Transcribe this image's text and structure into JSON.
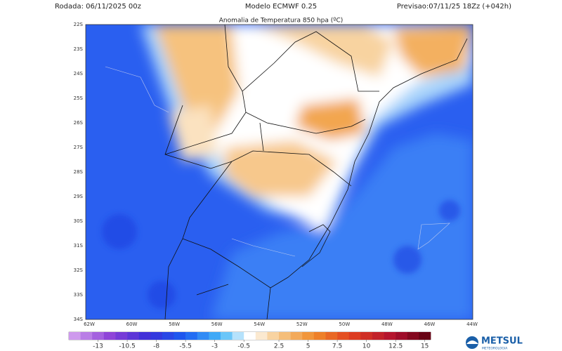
{
  "header": {
    "run": "Rodada: 06/11/2025 00z",
    "model": "Modelo ECMWF 0.25",
    "forecast": "Previsao:07/11/25 18Zz (+042h)"
  },
  "map": {
    "title": "Anomalia de Temperatura 850 hpa (ºC)",
    "lat_labels": [
      "22S",
      "23S",
      "24S",
      "25S",
      "26S",
      "27S",
      "28S",
      "29S",
      "30S",
      "31S",
      "32S",
      "33S",
      "34S"
    ],
    "lon_labels": [
      "62W",
      "60W",
      "58W",
      "56W",
      "54W",
      "52W",
      "50W",
      "48W",
      "46W",
      "44W"
    ]
  },
  "colorbar": {
    "lim": [
      -15.5,
      15.5
    ],
    "ticks": [
      -13,
      -10.5,
      -8,
      -5.5,
      -3,
      -0.5,
      2.5,
      5,
      7.5,
      10,
      12.5,
      15
    ]
  },
  "logo": {
    "name": "METSUL",
    "tagline": "METEOROLOGIA"
  }
}
